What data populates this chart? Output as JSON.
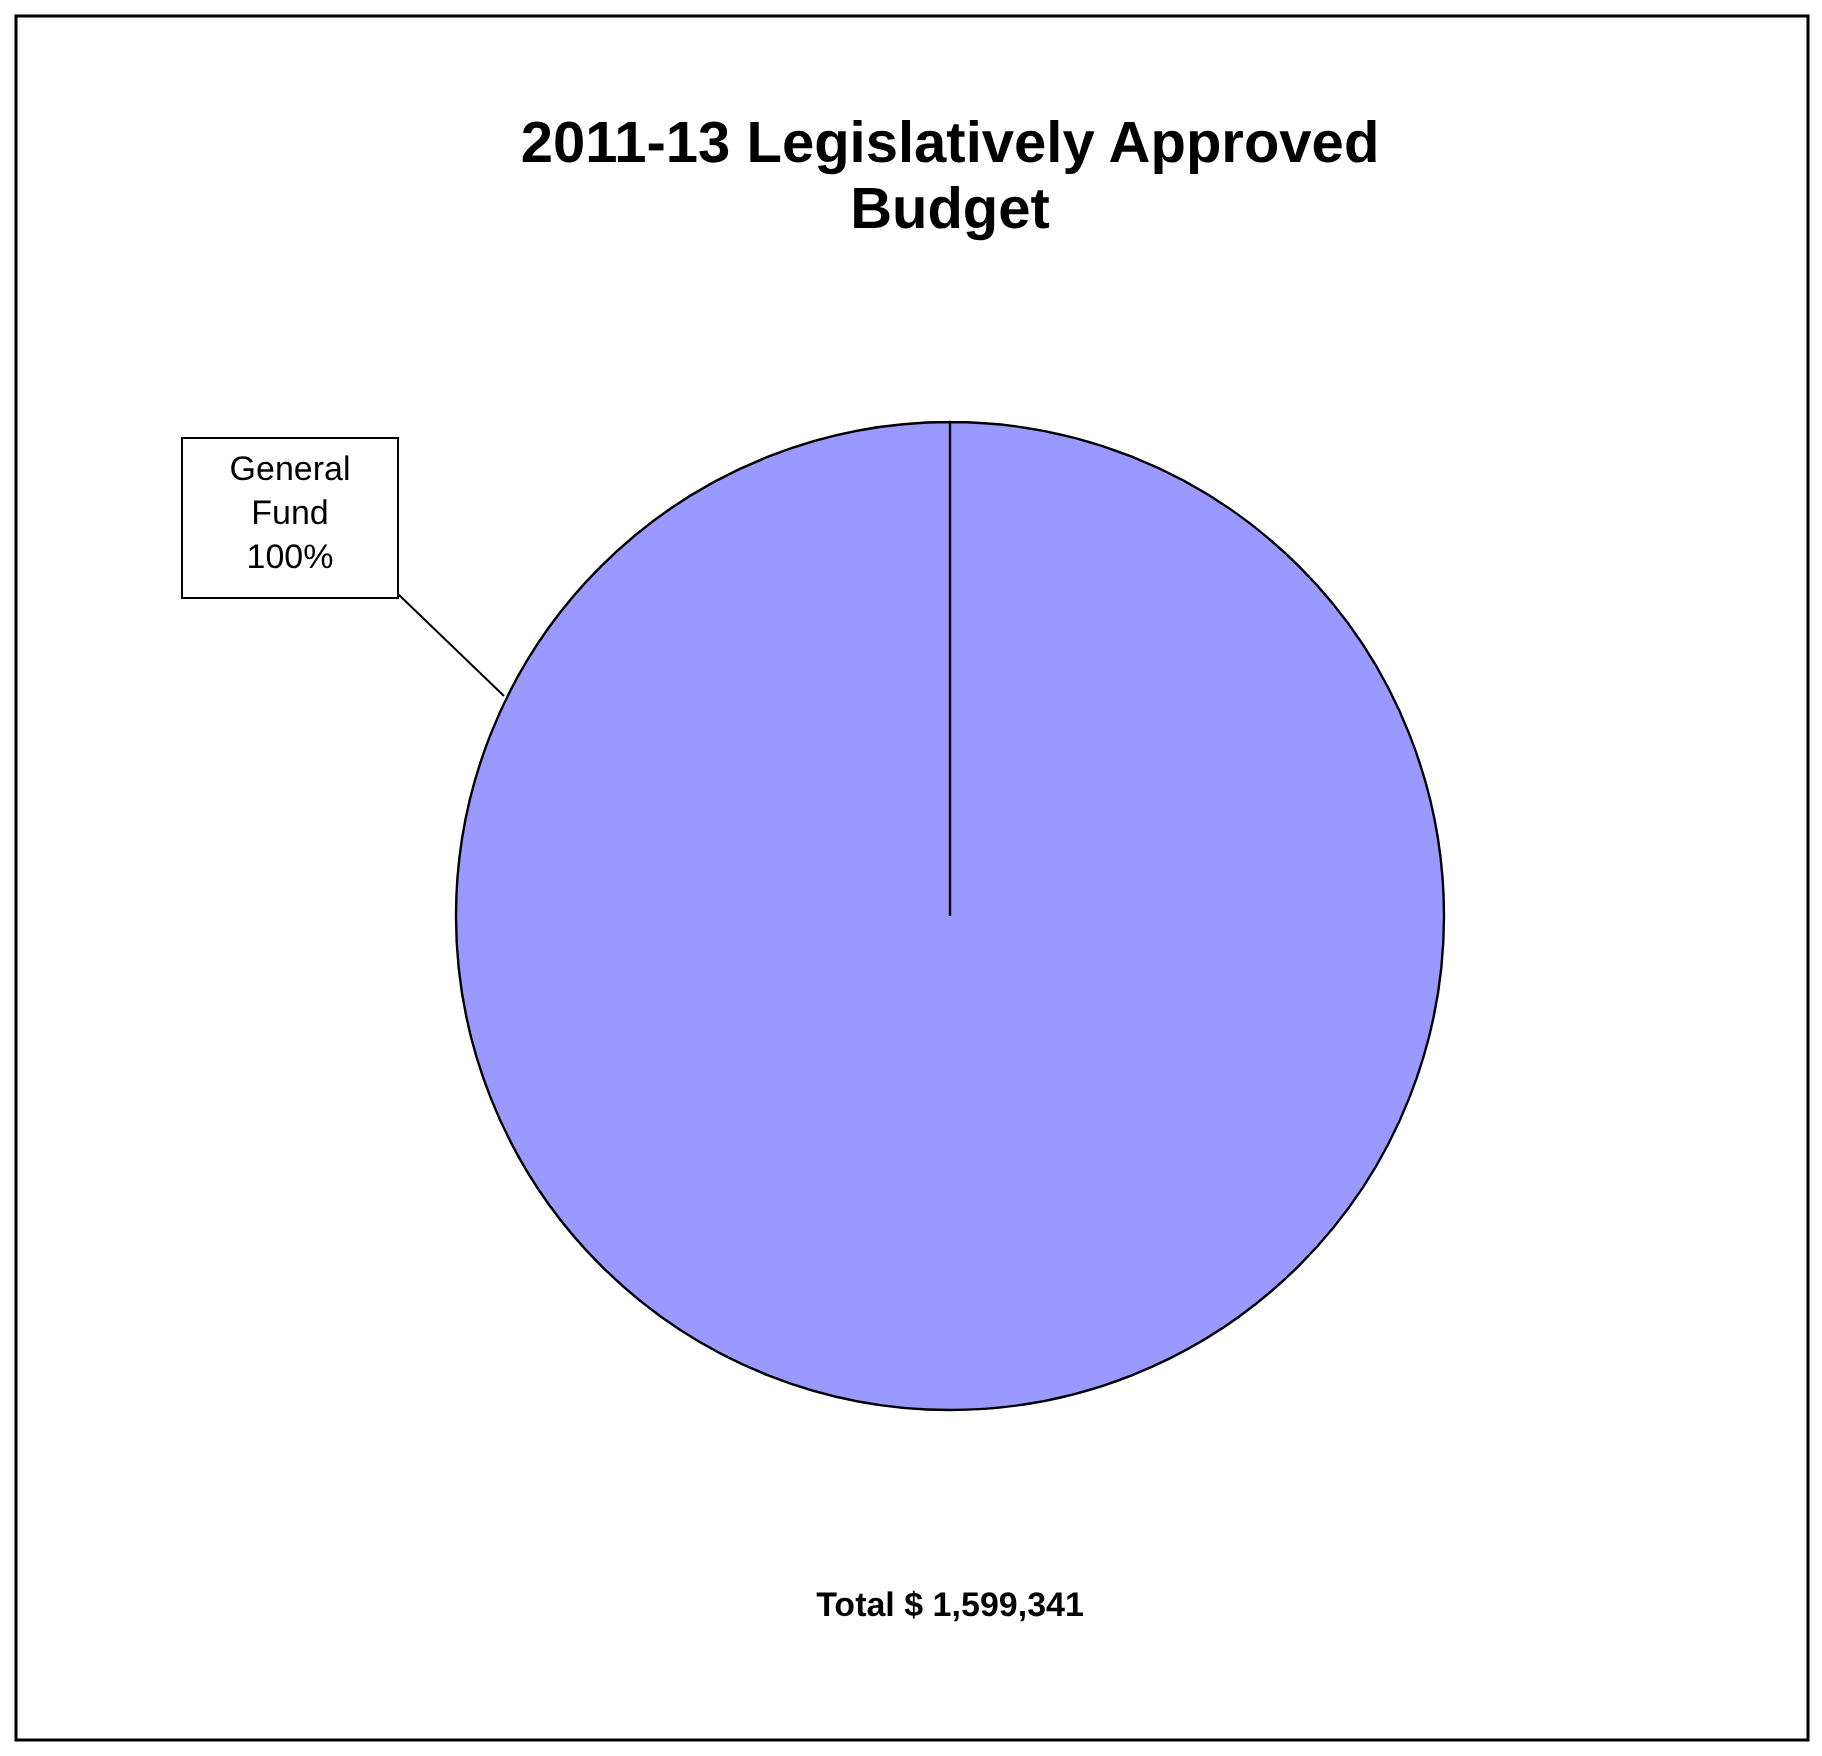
{
  "chart_data": {
    "type": "pie",
    "title": "2011-13 Legislatively Approved Budget",
    "categories": [
      "General Fund"
    ],
    "values": [
      100
    ],
    "value_labels": [
      "100%"
    ],
    "colors": [
      "#9999ff"
    ],
    "annotations": [
      "Total $ 1,599,341"
    ]
  }
}
